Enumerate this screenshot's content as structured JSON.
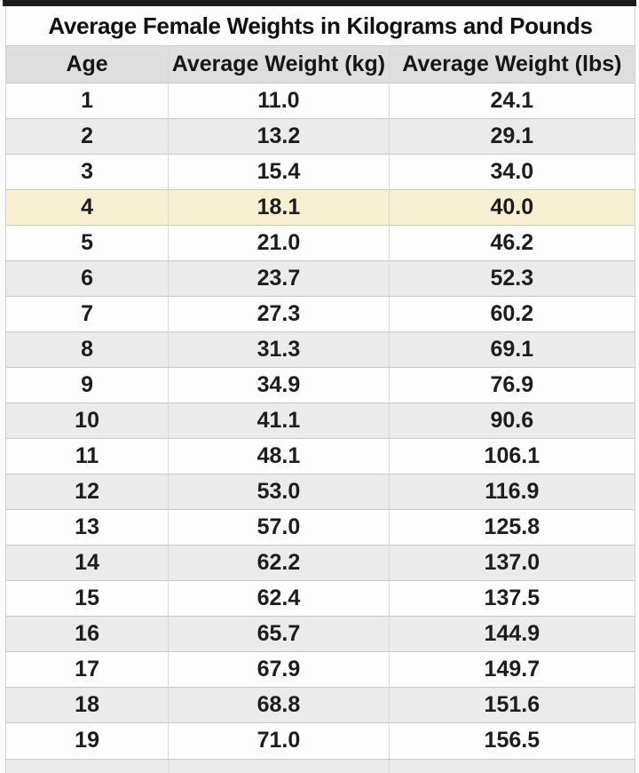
{
  "title": "Average Female Weights in Kilograms and Pounds",
  "colors": {
    "top_bar": "#1c1c1c",
    "header_bg": "#dedede",
    "zebra_row": "#ebebeb",
    "highlight_row": "#f6efd2",
    "text": "#1d1d1d"
  },
  "table": {
    "columns": [
      "Age",
      "Average Weight (kg)",
      "Average Weight (lbs)"
    ],
    "highlighted_age": "4",
    "rows": [
      {
        "age": "1",
        "kg": "11.0",
        "lbs": "24.1"
      },
      {
        "age": "2",
        "kg": "13.2",
        "lbs": "29.1"
      },
      {
        "age": "3",
        "kg": "15.4",
        "lbs": "34.0"
      },
      {
        "age": "4",
        "kg": "18.1",
        "lbs": "40.0"
      },
      {
        "age": "5",
        "kg": "21.0",
        "lbs": "46.2"
      },
      {
        "age": "6",
        "kg": "23.7",
        "lbs": "52.3"
      },
      {
        "age": "7",
        "kg": "27.3",
        "lbs": "60.2"
      },
      {
        "age": "8",
        "kg": "31.3",
        "lbs": "69.1"
      },
      {
        "age": "9",
        "kg": "34.9",
        "lbs": "76.9"
      },
      {
        "age": "10",
        "kg": "41.1",
        "lbs": "90.6"
      },
      {
        "age": "11",
        "kg": "48.1",
        "lbs": "106.1"
      },
      {
        "age": "12",
        "kg": "53.0",
        "lbs": "116.9"
      },
      {
        "age": "13",
        "kg": "57.0",
        "lbs": "125.8"
      },
      {
        "age": "14",
        "kg": "62.2",
        "lbs": "137.0"
      },
      {
        "age": "15",
        "kg": "62.4",
        "lbs": "137.5"
      },
      {
        "age": "16",
        "kg": "65.7",
        "lbs": "144.9"
      },
      {
        "age": "17",
        "kg": "67.9",
        "lbs": "149.7"
      },
      {
        "age": "18",
        "kg": "68.8",
        "lbs": "151.6"
      },
      {
        "age": "19",
        "kg": "71.0",
        "lbs": "156.5"
      }
    ]
  },
  "chart_data": {
    "type": "table",
    "title": "Average Female Weights in Kilograms and Pounds",
    "columns": [
      "Age",
      "Average Weight (kg)",
      "Average Weight (lbs)"
    ],
    "rows": [
      [
        1,
        11.0,
        24.1
      ],
      [
        2,
        13.2,
        29.1
      ],
      [
        3,
        15.4,
        34.0
      ],
      [
        4,
        18.1,
        40.0
      ],
      [
        5,
        21.0,
        46.2
      ],
      [
        6,
        23.7,
        52.3
      ],
      [
        7,
        27.3,
        60.2
      ],
      [
        8,
        31.3,
        69.1
      ],
      [
        9,
        34.9,
        76.9
      ],
      [
        10,
        41.1,
        90.6
      ],
      [
        11,
        48.1,
        106.1
      ],
      [
        12,
        53.0,
        116.9
      ],
      [
        13,
        57.0,
        125.8
      ],
      [
        14,
        62.2,
        137.0
      ],
      [
        15,
        62.4,
        137.5
      ],
      [
        16,
        65.7,
        144.9
      ],
      [
        17,
        67.9,
        149.7
      ],
      [
        18,
        68.8,
        151.6
      ],
      [
        19,
        71.0,
        156.5
      ]
    ],
    "highlighted_row_age": 4,
    "layout_hints": {
      "zebra_striping": true,
      "highlight_color": "#f6efd2",
      "header_background": "#dedede"
    }
  }
}
